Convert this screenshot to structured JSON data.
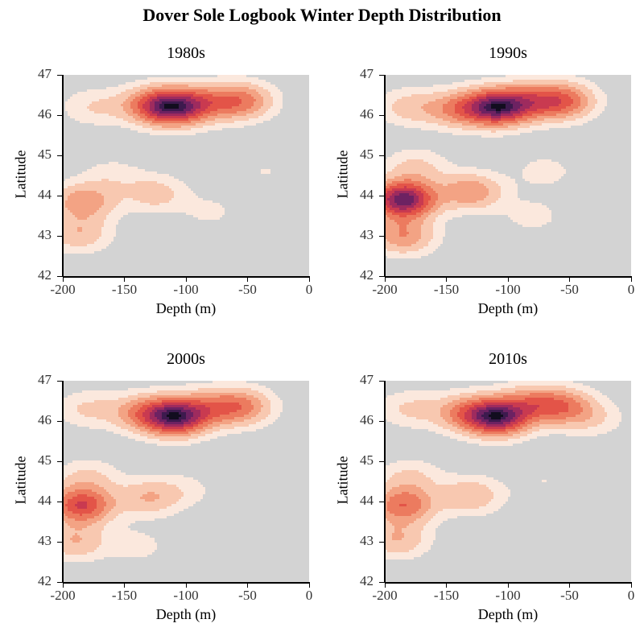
{
  "figure": {
    "title": "Dover Sole Logbook Winter Depth Distribution"
  },
  "colors": {
    "background": "#d3d3d3",
    "levels": [
      "#fbe8dd",
      "#f8c8b0",
      "#f3a384",
      "#ec7b5f",
      "#e35448",
      "#c93a50",
      "#9e2b5e",
      "#6d2262",
      "#3d1a4e",
      "#120d1f"
    ]
  },
  "chart_data": [
    {
      "type": "heatmap",
      "subtype": "filled-density-contour",
      "panel_title": "1980s",
      "xlabel": "Depth (m)",
      "ylabel": "Latitude",
      "xlim": [
        -200,
        0
      ],
      "ylim": [
        42,
        47
      ],
      "xticks": [
        "-200",
        "-150",
        "-100",
        "-50",
        "0"
      ],
      "yticks": [
        "42",
        "43",
        "44",
        "45",
        "46",
        "47"
      ],
      "grid": false,
      "density_peaks": [
        {
          "depth": -110,
          "latitude": 46.2,
          "weight": 1.0
        },
        {
          "depth": -130,
          "latitude": 46.25,
          "weight": 0.45
        },
        {
          "depth": -85,
          "latitude": 46.3,
          "weight": 0.4
        },
        {
          "depth": -55,
          "latitude": 46.35,
          "weight": 0.6
        },
        {
          "depth": -175,
          "latitude": 46.2,
          "weight": 0.22
        },
        {
          "depth": -183,
          "latitude": 43.85,
          "weight": 0.5
        },
        {
          "depth": -187,
          "latitude": 43.05,
          "weight": 0.35
        },
        {
          "depth": -125,
          "latitude": 44.05,
          "weight": 0.3
        },
        {
          "depth": -80,
          "latitude": 43.6,
          "weight": 0.12
        },
        {
          "depth": -160,
          "latitude": 44.5,
          "weight": 0.15
        },
        {
          "depth": -35,
          "latitude": 44.6,
          "weight": 0.1
        }
      ]
    },
    {
      "type": "heatmap",
      "subtype": "filled-density-contour",
      "panel_title": "1990s",
      "xlabel": "Depth (m)",
      "ylabel": "Latitude",
      "xlim": [
        -200,
        0
      ],
      "ylim": [
        42,
        47
      ],
      "xticks": [
        "-200",
        "-150",
        "-100",
        "-50",
        "0"
      ],
      "yticks": [
        "42",
        "43",
        "44",
        "45",
        "46",
        "47"
      ],
      "grid": false,
      "density_peaks": [
        {
          "depth": -108,
          "latitude": 46.2,
          "weight": 0.8
        },
        {
          "depth": -140,
          "latitude": 46.15,
          "weight": 0.35
        },
        {
          "depth": -80,
          "latitude": 46.35,
          "weight": 0.3
        },
        {
          "depth": -55,
          "latitude": 46.35,
          "weight": 0.45
        },
        {
          "depth": -180,
          "latitude": 46.2,
          "weight": 0.2
        },
        {
          "depth": -185,
          "latitude": 43.9,
          "weight": 0.85
        },
        {
          "depth": -185,
          "latitude": 43.0,
          "weight": 0.35
        },
        {
          "depth": -130,
          "latitude": 44.1,
          "weight": 0.35
        },
        {
          "depth": -175,
          "latitude": 44.7,
          "weight": 0.18
        },
        {
          "depth": -80,
          "latitude": 43.5,
          "weight": 0.1
        },
        {
          "depth": -70,
          "latitude": 44.6,
          "weight": 0.1
        }
      ]
    },
    {
      "type": "heatmap",
      "subtype": "filled-density-contour",
      "panel_title": "2000s",
      "xlabel": "Depth (m)",
      "ylabel": "Latitude",
      "xlim": [
        -200,
        0
      ],
      "ylim": [
        42,
        47
      ],
      "xticks": [
        "-200",
        "-150",
        "-100",
        "-50",
        "0"
      ],
      "yticks": [
        "42",
        "43",
        "44",
        "45",
        "46",
        "47"
      ],
      "grid": false,
      "density_peaks": [
        {
          "depth": -108,
          "latitude": 46.1,
          "weight": 0.95
        },
        {
          "depth": -135,
          "latitude": 46.2,
          "weight": 0.4
        },
        {
          "depth": -80,
          "latitude": 46.35,
          "weight": 0.3
        },
        {
          "depth": -55,
          "latitude": 46.35,
          "weight": 0.45
        },
        {
          "depth": -180,
          "latitude": 46.3,
          "weight": 0.2
        },
        {
          "depth": -185,
          "latitude": 43.9,
          "weight": 0.7
        },
        {
          "depth": -190,
          "latitude": 43.0,
          "weight": 0.3
        },
        {
          "depth": -130,
          "latitude": 44.1,
          "weight": 0.3
        },
        {
          "depth": -180,
          "latitude": 44.6,
          "weight": 0.2
        },
        {
          "depth": -140,
          "latitude": 42.9,
          "weight": 0.12
        },
        {
          "depth": -100,
          "latitude": 44.3,
          "weight": 0.1
        }
      ]
    },
    {
      "type": "heatmap",
      "subtype": "filled-density-contour",
      "panel_title": "2010s",
      "xlabel": "Depth (m)",
      "ylabel": "Latitude",
      "xlim": [
        -200,
        0
      ],
      "ylim": [
        42,
        47
      ],
      "xticks": [
        "-200",
        "-150",
        "-100",
        "-50",
        "0"
      ],
      "yticks": [
        "42",
        "43",
        "44",
        "45",
        "46",
        "47"
      ],
      "grid": false,
      "density_peaks": [
        {
          "depth": -108,
          "latitude": 46.1,
          "weight": 0.95
        },
        {
          "depth": -135,
          "latitude": 46.2,
          "weight": 0.4
        },
        {
          "depth": -80,
          "latitude": 46.45,
          "weight": 0.35
        },
        {
          "depth": -55,
          "latitude": 46.35,
          "weight": 0.45
        },
        {
          "depth": -30,
          "latitude": 46.05,
          "weight": 0.15
        },
        {
          "depth": -180,
          "latitude": 46.3,
          "weight": 0.2
        },
        {
          "depth": -185,
          "latitude": 43.9,
          "weight": 0.55
        },
        {
          "depth": -190,
          "latitude": 43.05,
          "weight": 0.3
        },
        {
          "depth": -130,
          "latitude": 44.15,
          "weight": 0.3
        },
        {
          "depth": -180,
          "latitude": 44.6,
          "weight": 0.2
        },
        {
          "depth": -70,
          "latitude": 44.5,
          "weight": 0.08
        }
      ]
    }
  ]
}
